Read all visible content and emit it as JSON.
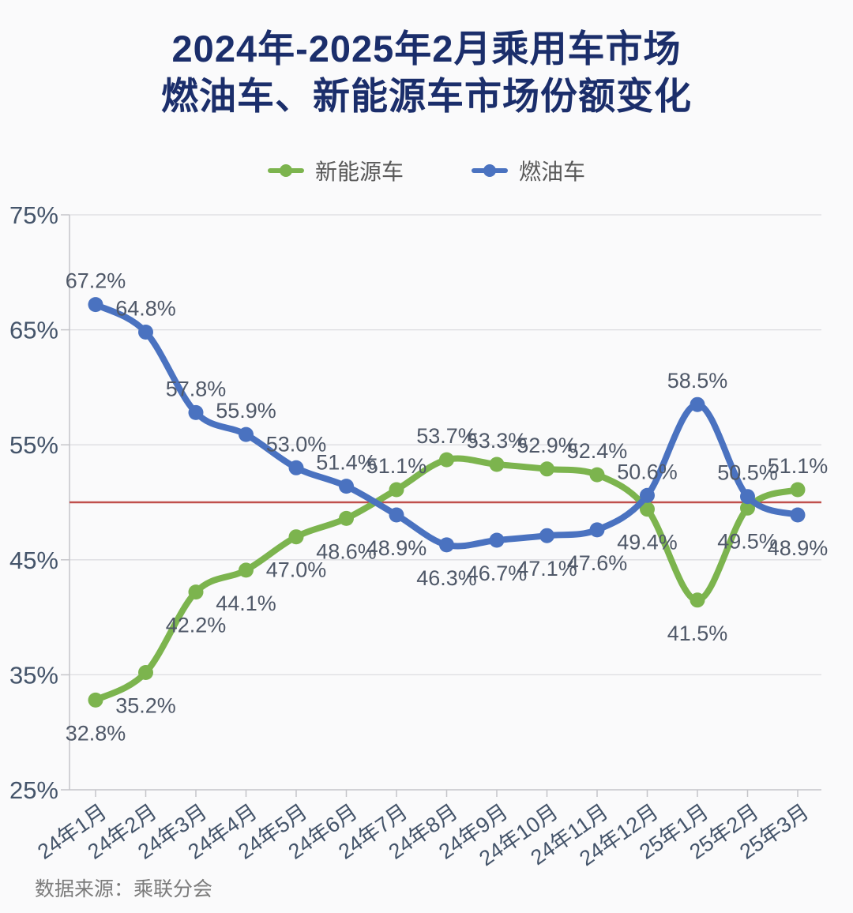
{
  "title": {
    "line1": "2024年-2025年2月乘用车市场",
    "line2": "燃油车、新能源车市场份额变化"
  },
  "legend": {
    "items": [
      {
        "label": "新能源车",
        "color": "#7cb44e"
      },
      {
        "label": "燃油车",
        "color": "#4a72c0"
      }
    ]
  },
  "footer": {
    "source": "数据来源：乘联分会"
  },
  "chart_data": {
    "type": "line",
    "title": "2024年-2025年2月乘用车市场燃油车、新能源车市场份额变化",
    "categories": [
      "24年1月",
      "24年2月",
      "24年3月",
      "24年4月",
      "24年5月",
      "24年6月",
      "24年7月",
      "24年8月",
      "24年9月",
      "24年10月",
      "24年11月",
      "24年12月",
      "25年1月",
      "25年2月",
      "25年3月"
    ],
    "series": [
      {
        "name": "新能源车",
        "color": "#7cb44e",
        "values": [
          32.8,
          35.2,
          42.2,
          44.1,
          47.0,
          48.6,
          51.1,
          53.7,
          53.3,
          52.9,
          52.4,
          49.4,
          41.5,
          49.5,
          51.1
        ],
        "label_side": [
          "below",
          "below",
          "below",
          "below",
          "below",
          "below",
          "above",
          "above",
          "above",
          "above",
          "above",
          "below",
          "below",
          "below",
          "above"
        ]
      },
      {
        "name": "燃油车",
        "color": "#4a72c0",
        "values": [
          67.2,
          64.8,
          57.8,
          55.9,
          53.0,
          51.4,
          48.9,
          46.3,
          46.7,
          47.1,
          47.6,
          50.6,
          58.5,
          50.5,
          48.9
        ],
        "label_side": [
          "above",
          "above",
          "above",
          "above",
          "above",
          "above",
          "below",
          "below",
          "below",
          "below",
          "below",
          "above",
          "above",
          "above",
          "below"
        ]
      }
    ],
    "ylim": [
      25,
      75
    ],
    "ytick_labels": [
      "25%",
      "35%",
      "45%",
      "55%",
      "65%",
      "75%"
    ],
    "reference_line": {
      "value": 50,
      "color": "#c0504d"
    },
    "grid": "horizontal",
    "legend_position": "top",
    "label_format": "one-decimal-percent",
    "colors": {
      "axis": "#c5c5c9",
      "gridline": "#dcdce0",
      "tick_text": "#44546a",
      "data_label": "#4f5868"
    }
  }
}
